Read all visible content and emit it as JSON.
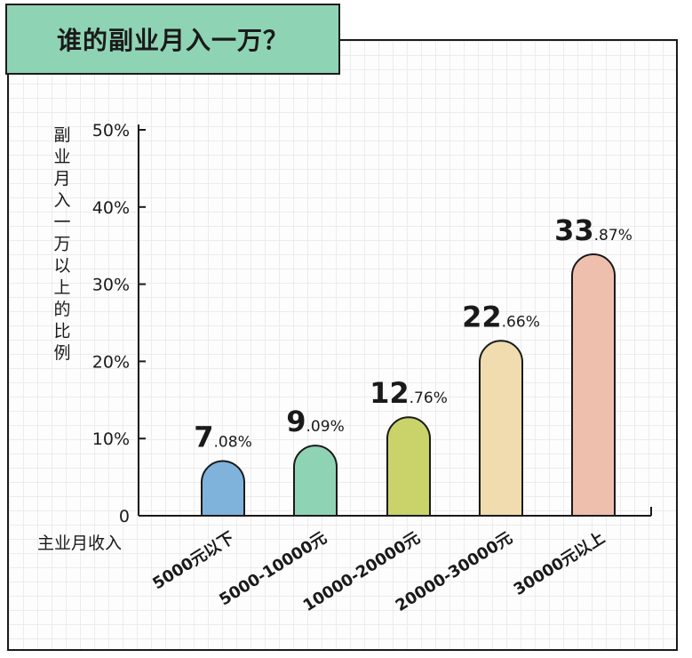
{
  "title": "谁的副业月入一万？",
  "chart_data": {
    "type": "bar",
    "title": "谁的副业月入一万？",
    "ylabel": "副业月入一万以上的比例",
    "xlabel": "主业月收入",
    "categories": [
      "5000元以下",
      "5000-10000元",
      "10000-20000元",
      "20000-30000元",
      "30000元以上"
    ],
    "values": [
      7.08,
      9.09,
      12.76,
      22.66,
      33.87
    ],
    "value_labels": [
      {
        "int": "7",
        "dec": ".08%"
      },
      {
        "int": "9",
        "dec": ".09%"
      },
      {
        "int": "12",
        "dec": ".76%"
      },
      {
        "int": "22",
        "dec": ".66%"
      },
      {
        "int": "33",
        "dec": ".87%"
      }
    ],
    "ylim": [
      0,
      50
    ],
    "yticks": [
      {
        "value": 0,
        "label": "0"
      },
      {
        "value": 10,
        "label": "10%"
      },
      {
        "value": 20,
        "label": "20%"
      },
      {
        "value": 30,
        "label": "30%"
      },
      {
        "value": 40,
        "label": "40%"
      },
      {
        "value": 50,
        "label": "50%"
      }
    ],
    "grid": true,
    "colors": [
      "#7fb3dc",
      "#8fd3b5",
      "#c9d36a",
      "#f0dcae",
      "#efbfae"
    ]
  }
}
